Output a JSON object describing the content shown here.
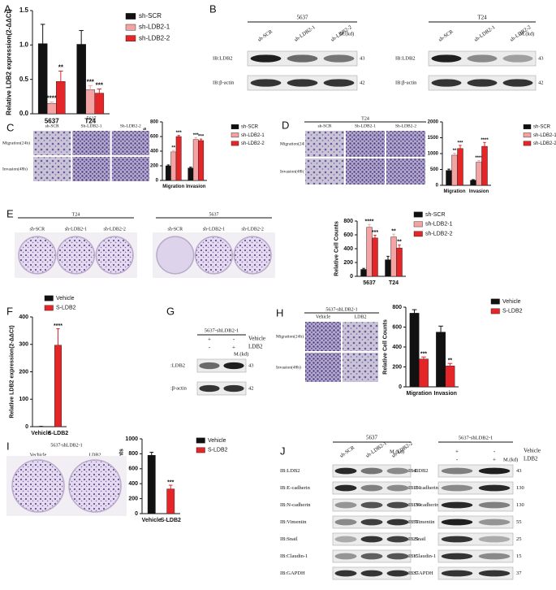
{
  "panels": [
    "A",
    "B",
    "C",
    "D",
    "E",
    "F",
    "G",
    "H",
    "I",
    "J"
  ],
  "chart_data": [
    {
      "type": "bar",
      "ylabel": "Relative LDB2 expression(2-ΔΔCt)",
      "categories": [
        "5637",
        "T24"
      ],
      "series": [
        {
          "name": "sh-SCR",
          "color": "#111111",
          "values": [
            1.02,
            1.01
          ],
          "errors": [
            0.28,
            0.2
          ]
        },
        {
          "name": "sh-LDB2-1",
          "color": "#f3a3a3",
          "values": [
            0.15,
            0.35
          ],
          "errors": [
            0.02,
            0.06
          ],
          "labels": [
            "****",
            "***"
          ]
        },
        {
          "name": "sh-LDB2-2",
          "color": "#e52629",
          "values": [
            0.47,
            0.3
          ],
          "errors": [
            0.15,
            0.06
          ],
          "labels": [
            "**",
            "***"
          ]
        }
      ],
      "ylim": [
        0,
        1.5
      ],
      "yticks": [
        {
          "value": 0,
          "label": "0.0"
        },
        0.5,
        {
          "value": 1,
          "label": "1.0"
        },
        1.5
      ]
    },
    {
      "type": "bar",
      "ylabel": "Relative Cell Counts",
      "categories": [
        "Migration",
        "Invasion"
      ],
      "series": [
        {
          "name": "sh-SCR",
          "color": "#111111",
          "values": [
            200,
            170
          ],
          "errors": [
            12,
            12
          ]
        },
        {
          "name": "sh-LDB2-1",
          "color": "#f3a3a3",
          "values": [
            390,
            560
          ],
          "errors": [
            20,
            25
          ],
          "labels": [
            "**",
            "***"
          ]
        },
        {
          "name": "sh-LDB2-2",
          "color": "#e52629",
          "values": [
            600,
            545
          ],
          "errors": [
            15,
            20
          ],
          "labels": [
            "***",
            "***"
          ]
        }
      ],
      "ylim": [
        0,
        800
      ],
      "yticks": [
        0,
        200,
        400,
        600,
        800
      ]
    },
    {
      "type": "bar",
      "ylabel": "Relative Cell Counts",
      "categories": [
        "Migration",
        "Invasion"
      ],
      "series": [
        {
          "name": "sh-SCR",
          "color": "#111111",
          "values": [
            470,
            160
          ],
          "errors": [
            40,
            20
          ]
        },
        {
          "name": "sh-LDB2-1",
          "color": "#f3a3a3",
          "values": [
            950,
            730
          ],
          "errors": [
            60,
            50
          ],
          "labels": [
            "**",
            "****"
          ]
        },
        {
          "name": "sh-LDB2-2",
          "color": "#e52629",
          "values": [
            1160,
            1230
          ],
          "errors": [
            100,
            120
          ],
          "labels": [
            "***",
            "****"
          ]
        }
      ],
      "ylim": [
        0,
        2000
      ],
      "yticks": [
        0,
        500,
        1000,
        1500,
        2000
      ]
    },
    {
      "type": "bar",
      "ylabel": "Relative Cell Counts",
      "categories": [
        "5637",
        "T24"
      ],
      "series": [
        {
          "name": "sh-SCR",
          "color": "#111111",
          "values": [
            100,
            240
          ],
          "errors": [
            15,
            50
          ]
        },
        {
          "name": "sh-LDB2-1",
          "color": "#f3a3a3",
          "values": [
            710,
            570
          ],
          "errors": [
            40,
            40
          ],
          "labels": [
            "****",
            "**"
          ]
        },
        {
          "name": "sh-LDB2-2",
          "color": "#e52629",
          "values": [
            555,
            410
          ],
          "errors": [
            40,
            45
          ],
          "labels": [
            "***",
            "**"
          ]
        }
      ],
      "ylim": [
        0,
        800
      ],
      "yticks": [
        0,
        200,
        400,
        600,
        800
      ]
    },
    {
      "type": "bar",
      "ylabel": "Relative LDB2 expression(2-ΔΔCt)",
      "categories": [
        "Vehicle",
        "S-LDB2"
      ],
      "series": [
        {
          "name": "Vehicle",
          "color": "#111111",
          "values": [
            1,
            null
          ],
          "errors": [
            0.2,
            null
          ]
        },
        {
          "name": "S-LDB2",
          "color": "#e52629",
          "values": [
            null,
            297
          ],
          "errors": [
            null,
            60
          ],
          "labels": [
            null,
            "****"
          ]
        }
      ],
      "ylim": [
        0,
        400
      ],
      "yticks": [
        0,
        100,
        200,
        300,
        400
      ]
    },
    {
      "type": "bar",
      "ylabel": "Relative Cell Counts",
      "categories": [
        "Migration",
        "Invasion"
      ],
      "series": [
        {
          "name": "Vehicle",
          "color": "#111111",
          "values": [
            740,
            550
          ],
          "errors": [
            35,
            60
          ]
        },
        {
          "name": "S-LDB2",
          "color": "#e52629",
          "values": [
            280,
            210
          ],
          "errors": [
            20,
            25
          ],
          "labels": [
            "***",
            "**"
          ]
        }
      ],
      "ylim": [
        0,
        800
      ],
      "yticks": [
        0,
        200,
        400,
        600,
        800
      ]
    },
    {
      "type": "bar",
      "ylabel": "Relative Cell Counts",
      "categories": [
        "Vehicle",
        "S-LDB2"
      ],
      "series": [
        {
          "name": "Vehicle",
          "color": "#111111",
          "values": [
            780,
            null
          ],
          "errors": [
            40,
            null
          ]
        },
        {
          "name": "S-LDB2",
          "color": "#e52629",
          "values": [
            null,
            330
          ],
          "errors": [
            null,
            50
          ],
          "labels": [
            null,
            "***"
          ]
        }
      ],
      "ylim": [
        0,
        1000
      ],
      "yticks": [
        0,
        200,
        400,
        600,
        800,
        1000
      ]
    }
  ],
  "blots": {
    "B": {
      "left": {
        "title": "5637",
        "lanes": [
          "sh-SCR",
          "sh-LDB2-1",
          "sh-LDB2-2"
        ],
        "marker": "M.(kd)",
        "rows": [
          "IB:LDB2",
          "IB:β-actin"
        ],
        "kd": [
          43,
          42
        ]
      },
      "right": {
        "title": "T24",
        "lanes": [
          "sh-SCR",
          "sh-LDB2-1",
          "sh-LDB2-2"
        ],
        "marker": "M.(kd)",
        "rows": [
          "IB:LDB2",
          "IB:β-actin"
        ],
        "kd": [
          43,
          42
        ]
      }
    },
    "G": {
      "title": "5637-shLDB2-1",
      "conditions": [
        "Vehicle",
        "LDB2"
      ],
      "signs": [
        [
          "+",
          "-"
        ],
        [
          "-",
          "+"
        ]
      ],
      "marker": "M.(kd)",
      "rows": [
        ":LDB2",
        ":β-actin"
      ],
      "kd": [
        43,
        42
      ]
    },
    "J": {
      "left": {
        "title": "5637",
        "lanes": [
          "sh-SCR",
          "sh-LDB2-1",
          "sh-LDB2-2"
        ],
        "marker": "M.(kd)",
        "rows": [
          "IB:LDB2",
          "IB:E-cadherin",
          "IB:N-cadherin",
          "IB:Vimentin",
          "IB:Snail",
          "IB:Claudin-1",
          "IB:GAPDH"
        ],
        "kd": [
          43,
          130,
          130,
          55,
          25,
          15,
          37
        ]
      },
      "right": {
        "title": "5637-shLDB2-1",
        "conditions": [
          "Vehicle",
          "LDB2"
        ],
        "signs": [
          [
            "+",
            "-"
          ],
          [
            "-",
            "+"
          ]
        ],
        "marker": "M.(kd)",
        "rows": [
          "IB:LDB2",
          "IB:E-cadherin",
          "IB:N-cadherin",
          "IB:Vimentin",
          "IB:Snail",
          "IB:Claudin-1",
          "IB:GAPDH"
        ],
        "kd": [
          43,
          130,
          130,
          55,
          25,
          15,
          37
        ]
      }
    }
  },
  "images": {
    "C": {
      "title": "5637",
      "cols": [
        "sh-SCR",
        "Sh-LDB2-1",
        "Sh-LDB2-2"
      ],
      "rows": [
        "Migration(24h)",
        "Invasion(48h)"
      ]
    },
    "D": {
      "title": "T24",
      "cols": [
        "sh-SCR",
        "Sh-LDB2-1",
        "Sh-LDB2-2"
      ],
      "rows": [
        "Migration(24h)",
        "Invasion(48h)"
      ]
    },
    "E": {
      "left": {
        "title": "T24",
        "cols": [
          "sh-SCR",
          "sh-LDB2-1",
          "sh-LDB2-2"
        ]
      },
      "right": {
        "title": "5637",
        "cols": [
          "sh-SCR",
          "sh-LDB2-1",
          "sh-LDB2-2"
        ]
      }
    },
    "H": {
      "title": "5637-shLDB2-1",
      "cols": [
        "Vehicle",
        "LDB2"
      ],
      "rows": [
        "Migration(24h)",
        "Invasion(48h)"
      ]
    },
    "I": {
      "title": "5637-shLDB2-1",
      "cols": [
        "Vechicle",
        "LDB2"
      ]
    }
  }
}
